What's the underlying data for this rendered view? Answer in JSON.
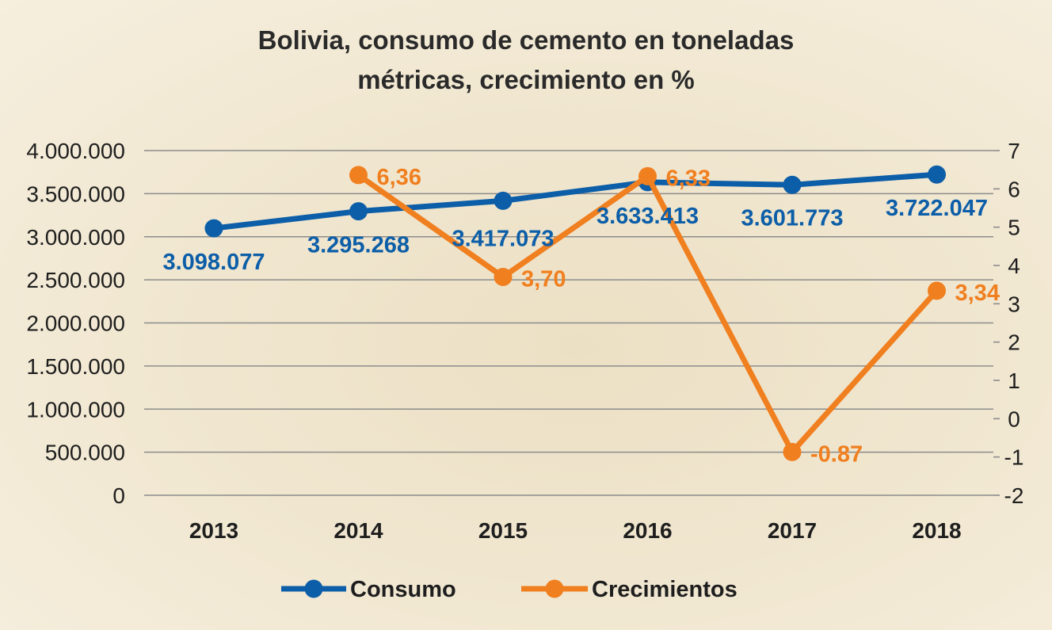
{
  "chart_data": {
    "type": "line",
    "title": [
      "Bolivia, consumo de cemento en toneladas",
      "métricas, crecimiento en %"
    ],
    "categories": [
      "2013",
      "2014",
      "2015",
      "2016",
      "2017",
      "2018"
    ],
    "series": [
      {
        "name": "Consumo",
        "axis": "left",
        "color": "#0c5ea8",
        "values": [
          3098077,
          3295268,
          3417073,
          3633413,
          3601773,
          3722047
        ],
        "labels": [
          "3.098.077",
          "3.295.268",
          "3.417.073",
          "3.633.413",
          "3.601.773",
          "3.722.047"
        ]
      },
      {
        "name": "Crecimientos",
        "axis": "right",
        "color": "#f07f1f",
        "values": [
          null,
          6.36,
          3.7,
          6.33,
          -0.87,
          3.34
        ],
        "labels": [
          "",
          "6,36",
          "3,70",
          "6,33",
          "-0.87",
          "3,34"
        ]
      }
    ],
    "y_left": {
      "min": 0,
      "max": 4000000,
      "ticks": [
        0,
        500000,
        1000000,
        1500000,
        2000000,
        2500000,
        3000000,
        3500000,
        4000000
      ],
      "tick_labels": [
        "0",
        "500.000",
        "1.000.000",
        "1.500.000",
        "2.000.000",
        "2.500.000",
        "3.000.000",
        "3.500.000",
        "4.000.000"
      ]
    },
    "y_right": {
      "min": -2,
      "max": 7,
      "ticks": [
        -2,
        -1,
        0,
        1,
        2,
        3,
        4,
        5,
        6,
        7
      ],
      "tick_labels": [
        "-2",
        "-1",
        "0",
        "1",
        "2",
        "3",
        "4",
        "5",
        "6",
        "7"
      ]
    },
    "grid": true,
    "legend": "bottom-center"
  }
}
